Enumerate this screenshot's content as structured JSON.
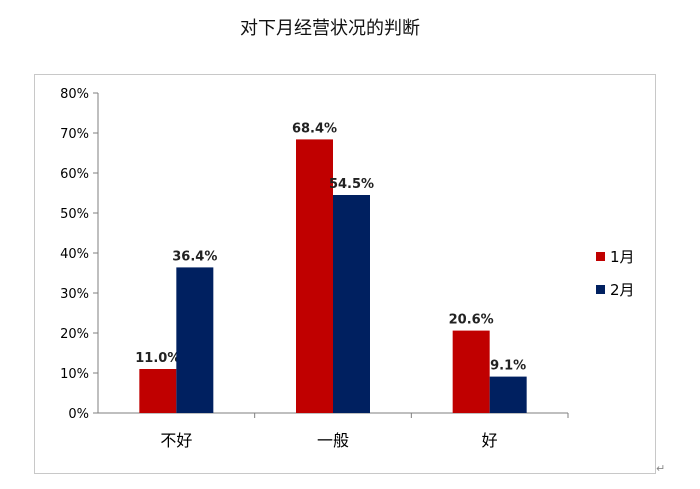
{
  "chart_data": {
    "type": "bar",
    "title": "对下月经营状况的判断",
    "categories": [
      "不好",
      "一般",
      "好"
    ],
    "series": [
      {
        "name": "1月",
        "values": [
          11.0,
          68.4,
          20.6
        ],
        "color": "#C00000"
      },
      {
        "name": "2月",
        "values": [
          36.4,
          54.5,
          9.1
        ],
        "color": "#002060"
      }
    ],
    "data_labels": [
      [
        "11.0%",
        "68.4%",
        "20.6%"
      ],
      [
        "36.4%",
        "54.5%",
        "9.1%"
      ]
    ],
    "y_ticks": [
      "0%",
      "10%",
      "20%",
      "30%",
      "40%",
      "50%",
      "60%",
      "70%",
      "80%"
    ],
    "ylim": [
      0,
      80
    ],
    "y_unit": "%",
    "grid": false,
    "legend_position": "right"
  }
}
